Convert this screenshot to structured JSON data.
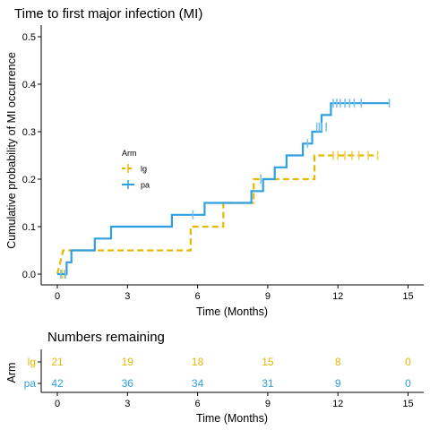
{
  "colors": {
    "lg": "#E7B800",
    "pa": "#2E9FDF",
    "pa_censor": "#7CC3EC",
    "lg_censor": "#F0D055"
  },
  "chart_data": [
    {
      "type": "line",
      "subtype": "kaplan-meier-cumulative-incidence",
      "title": "Time to first major infection (MI)",
      "xlabel": "Time (Months)",
      "ylabel": "Cumulative probability of MI occurrence",
      "xlim": [
        0,
        15
      ],
      "ylim": [
        0,
        0.5
      ],
      "x_ticks": [
        "0",
        "3",
        "6",
        "9",
        "12",
        "15"
      ],
      "y_ticks": [
        "0.0",
        "0.1",
        "0.2",
        "0.3",
        "0.4",
        "0.5"
      ],
      "legend": {
        "title": "Arm",
        "position": "left-middle"
      },
      "series": [
        {
          "name": "lg",
          "color": "#E7B800",
          "style": "dashed",
          "steps": [
            [
              0,
              0
            ],
            [
              0.25,
              0.05
            ],
            [
              1.7,
              0.05
            ],
            [
              5.7,
              0.05
            ],
            [
              5.7,
              0.1
            ],
            [
              7.1,
              0.1
            ],
            [
              7.1,
              0.15
            ],
            [
              8.4,
              0.15
            ],
            [
              8.4,
              0.2
            ],
            [
              11.0,
              0.2
            ],
            [
              11.0,
              0.25
            ],
            [
              13.7,
              0.25
            ]
          ],
          "censor_x": [
            0.2,
            0.3,
            11.8,
            12.0,
            12.3,
            12.6,
            12.9,
            13.3,
            13.7
          ],
          "censor_y": [
            0,
            0,
            0.25,
            0.25,
            0.25,
            0.25,
            0.25,
            0.25,
            0.25
          ]
        },
        {
          "name": "pa",
          "color": "#2E9FDF",
          "style": "solid",
          "steps": [
            [
              0,
              0
            ],
            [
              0.4,
              0
            ],
            [
              0.4,
              0.025
            ],
            [
              0.6,
              0.025
            ],
            [
              0.6,
              0.05
            ],
            [
              1.6,
              0.05
            ],
            [
              1.6,
              0.075
            ],
            [
              2.3,
              0.075
            ],
            [
              2.3,
              0.1
            ],
            [
              4.9,
              0.1
            ],
            [
              4.9,
              0.125
            ],
            [
              6.3,
              0.125
            ],
            [
              6.3,
              0.15
            ],
            [
              8.3,
              0.15
            ],
            [
              8.3,
              0.175
            ],
            [
              8.8,
              0.175
            ],
            [
              8.8,
              0.2
            ],
            [
              9.3,
              0.2
            ],
            [
              9.3,
              0.225
            ],
            [
              9.8,
              0.225
            ],
            [
              9.8,
              0.25
            ],
            [
              10.5,
              0.25
            ],
            [
              10.5,
              0.275
            ],
            [
              10.9,
              0.275
            ],
            [
              10.9,
              0.3
            ],
            [
              11.3,
              0.3
            ],
            [
              11.3,
              0.335
            ],
            [
              11.7,
              0.335
            ],
            [
              11.7,
              0.36
            ],
            [
              14.2,
              0.36
            ]
          ],
          "censor_x": [
            0.15,
            0.35,
            5.8,
            8.7,
            10.7,
            11.1,
            11.2,
            11.3,
            11.5,
            11.8,
            11.95,
            12.1,
            12.3,
            12.5,
            12.7,
            13.0,
            14.2
          ],
          "censor_y": [
            0,
            0,
            0.125,
            0.2,
            0.275,
            0.31,
            0.31,
            0.31,
            0.31,
            0.36,
            0.36,
            0.36,
            0.36,
            0.36,
            0.36,
            0.36,
            0.36
          ]
        }
      ]
    },
    {
      "type": "table",
      "title": "Numbers remaining",
      "xlabel": "Time (Months)",
      "ylabel": "Arm",
      "xlim": [
        0,
        15
      ],
      "x_ticks": [
        "0",
        "3",
        "6",
        "9",
        "12",
        "15"
      ],
      "times": [
        0,
        3,
        6,
        9,
        12,
        15
      ],
      "rows": [
        {
          "name": "lg",
          "values": [
            "21",
            "19",
            "18",
            "15",
            "8",
            "0"
          ]
        },
        {
          "name": "pa",
          "values": [
            "42",
            "36",
            "34",
            "31",
            "9",
            "0"
          ]
        }
      ]
    }
  ]
}
